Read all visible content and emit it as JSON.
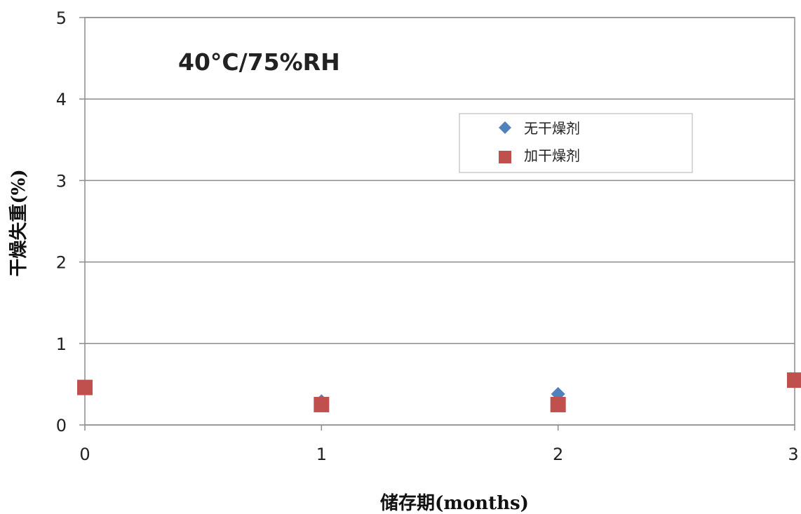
{
  "chart_data": {
    "type": "scatter",
    "title": "40°C/75%RH",
    "xlabel": "储存期(months)",
    "ylabel": "干燥失重(%)",
    "xlim": [
      0,
      3
    ],
    "ylim": [
      0,
      5
    ],
    "x_ticks": [
      "0",
      "1",
      "2",
      "3"
    ],
    "y_ticks": [
      "0",
      "1",
      "2",
      "3",
      "4",
      "5"
    ],
    "grid": "horizontal",
    "legend_position": "top-right",
    "series": [
      {
        "name": "无干燥剂",
        "marker": "diamond",
        "color": "#4F81BD",
        "points": [
          {
            "x": 0,
            "y": 0.46
          },
          {
            "x": 1,
            "y": 0.29
          },
          {
            "x": 2,
            "y": 0.38
          },
          {
            "x": 3,
            "y": 0.55
          }
        ]
      },
      {
        "name": "加干燥剂",
        "marker": "square",
        "color": "#C0504D",
        "points": [
          {
            "x": 0,
            "y": 0.46
          },
          {
            "x": 1,
            "y": 0.25
          },
          {
            "x": 2,
            "y": 0.25
          },
          {
            "x": 3,
            "y": 0.55
          }
        ]
      }
    ]
  }
}
